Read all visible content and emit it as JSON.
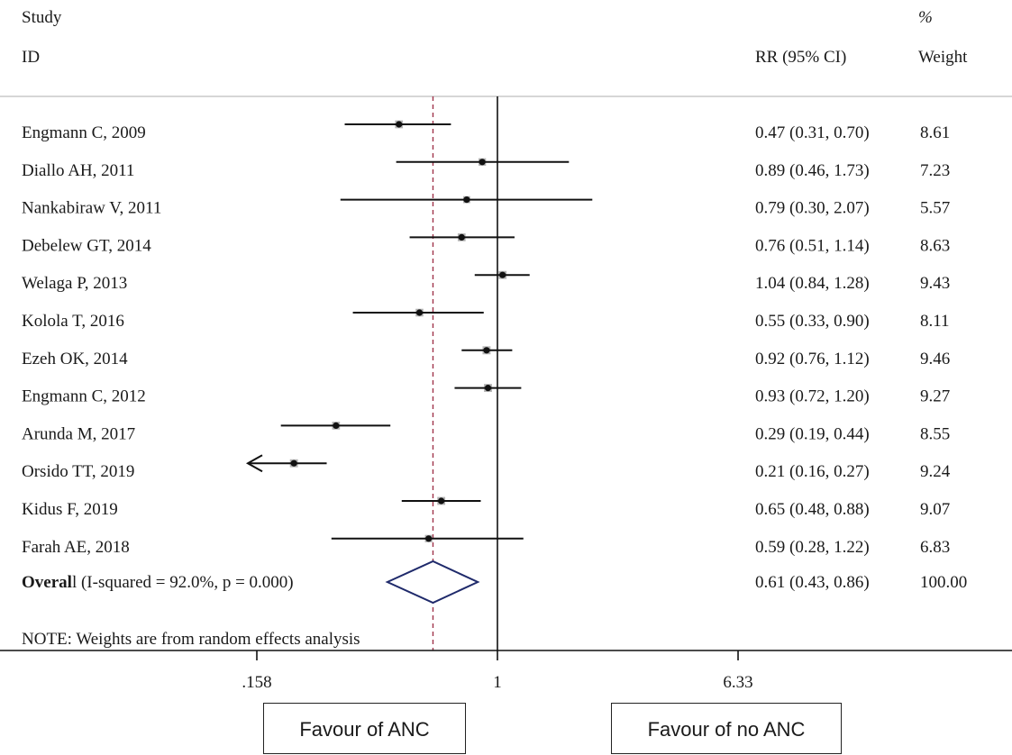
{
  "chart_data": {
    "type": "forest",
    "header": {
      "study": "Study",
      "id": "ID",
      "effect": "RR (95% CI)",
      "percent": "%",
      "weight": "Weight"
    },
    "studies": [
      {
        "name": "Engmann C, 2009",
        "rr": 0.47,
        "lower": 0.31,
        "upper": 0.7,
        "ci_text": "0.47 (0.31, 0.70)",
        "weight": "8.61"
      },
      {
        "name": "Diallo AH, 2011",
        "rr": 0.89,
        "lower": 0.46,
        "upper": 1.73,
        "ci_text": "0.89 (0.46, 1.73)",
        "weight": "7.23"
      },
      {
        "name": "Nankabiraw V, 2011",
        "rr": 0.79,
        "lower": 0.3,
        "upper": 2.07,
        "ci_text": "0.79 (0.30, 2.07)",
        "weight": "5.57"
      },
      {
        "name": "Debelew GT, 2014",
        "rr": 0.76,
        "lower": 0.51,
        "upper": 1.14,
        "ci_text": "0.76 (0.51, 1.14)",
        "weight": "8.63"
      },
      {
        "name": "Welaga P, 2013",
        "rr": 1.04,
        "lower": 0.84,
        "upper": 1.28,
        "ci_text": "1.04 (0.84, 1.28)",
        "weight": "9.43"
      },
      {
        "name": "Kolola T, 2016",
        "rr": 0.55,
        "lower": 0.33,
        "upper": 0.9,
        "ci_text": "0.55 (0.33, 0.90)",
        "weight": "8.11"
      },
      {
        "name": "Ezeh OK, 2014",
        "rr": 0.92,
        "lower": 0.76,
        "upper": 1.12,
        "ci_text": "0.92 (0.76, 1.12)",
        "weight": "9.46"
      },
      {
        "name": "Engmann C, 2012",
        "rr": 0.93,
        "lower": 0.72,
        "upper": 1.2,
        "ci_text": "0.93 (0.72, 1.20)",
        "weight": "9.27"
      },
      {
        "name": "Arunda M, 2017",
        "rr": 0.29,
        "lower": 0.19,
        "upper": 0.44,
        "ci_text": "0.29 (0.19, 0.44)",
        "weight": "8.55"
      },
      {
        "name": "Orsido TT, 2019",
        "rr": 0.21,
        "lower": 0.16,
        "upper": 0.27,
        "ci_text": "0.21 (0.16, 0.27)",
        "weight": "9.24",
        "arrow_left": true
      },
      {
        "name": "Kidus F, 2019",
        "rr": 0.65,
        "lower": 0.48,
        "upper": 0.88,
        "ci_text": "0.65 (0.48, 0.88)",
        "weight": "9.07"
      },
      {
        "name": "Farah AE, 2018",
        "rr": 0.59,
        "lower": 0.28,
        "upper": 1.22,
        "ci_text": "0.59 (0.28, 1.22)",
        "weight": "6.83"
      }
    ],
    "overall": {
      "label_bold": "Overal",
      "label_rest": "l (I-squared = 92.0%, p = 0.000)",
      "rr": 0.61,
      "lower": 0.43,
      "upper": 0.86,
      "ci_text": "0.61 (0.43, 0.86)",
      "weight": "100.00"
    },
    "note": "NOTE: Weights are from random effects analysis",
    "x_axis": {
      "scale": "log",
      "ticks": [
        {
          "value": 0.158,
          "label": ".158"
        },
        {
          "value": 1,
          "label": "1"
        },
        {
          "value": 6.33,
          "label": "6.33"
        }
      ],
      "null_line": 1
    },
    "box_labels": {
      "left": "Favour of ANC",
      "right": "Favour of no ANC"
    },
    "colors": {
      "ci_line": "#111111",
      "marker_box": "#b4b4b4",
      "point": "#111111",
      "diamond": "#1f2a6b",
      "overall_line": "#a0344a"
    }
  }
}
